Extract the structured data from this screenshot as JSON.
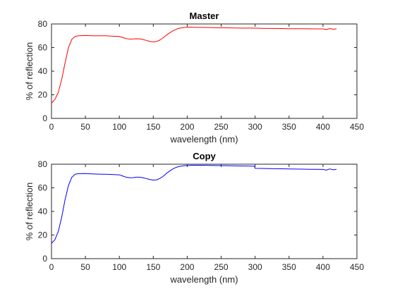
{
  "chart_data": [
    {
      "type": "line",
      "title": "Master",
      "xlabel": "wavelength (nm)",
      "ylabel": "% of reflection",
      "xlim": [
        0,
        450
      ],
      "ylim": [
        0,
        80
      ],
      "xticks": [
        "0",
        "50",
        "100",
        "150",
        "200",
        "250",
        "300",
        "350",
        "400",
        "450"
      ],
      "yticks": [
        "0",
        "20",
        "40",
        "60",
        "80"
      ],
      "grid": false,
      "color": "#ff0000",
      "series": [
        {
          "x": [
            0,
            5,
            10,
            15,
            20,
            25,
            30,
            35,
            40,
            50,
            60,
            70,
            80,
            90,
            100,
            105,
            110,
            115,
            120,
            125,
            130,
            135,
            140,
            145,
            150,
            155,
            160,
            165,
            170,
            175,
            180,
            185,
            190,
            195,
            200,
            205,
            210,
            220,
            230,
            240,
            250,
            260,
            270,
            280,
            290,
            300,
            310,
            320,
            330,
            340,
            350,
            360,
            370,
            380,
            390,
            400,
            405,
            410,
            415,
            420
          ],
          "y": [
            13,
            16,
            22,
            33,
            47,
            60,
            67,
            69.5,
            70,
            70.2,
            70,
            70,
            70,
            69.6,
            69.4,
            68.5,
            67.6,
            67.2,
            67.3,
            67.5,
            67.4,
            66.8,
            66,
            65.2,
            64.8,
            65.2,
            66.5,
            68.5,
            70.8,
            72.8,
            74.5,
            75.8,
            76.6,
            77,
            77.2,
            77.3,
            77.2,
            77.1,
            77,
            76.9,
            76.8,
            76.7,
            76.6,
            76.5,
            76.5,
            76.4,
            76.3,
            76.2,
            76.2,
            76.1,
            76,
            76,
            76,
            75.9,
            75.8,
            75.8,
            75.3,
            76.1,
            75.5,
            75.9
          ]
        }
      ]
    },
    {
      "type": "line",
      "title": "Copy",
      "xlabel": "wavelength (nm)",
      "ylabel": "% of reflection",
      "xlim": [
        0,
        450
      ],
      "ylim": [
        0,
        80
      ],
      "xticks": [
        "0",
        "50",
        "100",
        "150",
        "200",
        "250",
        "300",
        "350",
        "400",
        "450"
      ],
      "yticks": [
        "0",
        "20",
        "40",
        "60",
        "80"
      ],
      "grid": false,
      "color": "#0000ff",
      "series": [
        {
          "x": [
            0,
            5,
            10,
            15,
            20,
            25,
            30,
            35,
            40,
            50,
            60,
            70,
            80,
            90,
            100,
            105,
            110,
            115,
            120,
            125,
            130,
            135,
            140,
            145,
            150,
            155,
            160,
            165,
            170,
            175,
            180,
            185,
            190,
            195,
            200,
            205,
            210,
            220,
            230,
            240,
            250,
            260,
            270,
            280,
            290,
            299,
            300,
            310,
            320,
            330,
            340,
            350,
            360,
            370,
            380,
            390,
            400,
            405,
            410,
            415,
            420
          ],
          "y": [
            13,
            16,
            23,
            35,
            50,
            62,
            69,
            71.5,
            72,
            72.1,
            71.8,
            71.6,
            71.5,
            71.3,
            71,
            70,
            69,
            68.5,
            68.6,
            69,
            69,
            68.5,
            67.8,
            67,
            66.5,
            66.8,
            68,
            70,
            72.5,
            74.6,
            76.4,
            77.6,
            78.3,
            78.7,
            78.9,
            79,
            79.1,
            79.1,
            79,
            78.9,
            78.8,
            78.7,
            78.6,
            78.5,
            78.4,
            78.3,
            76.5,
            76.4,
            76.3,
            76.2,
            76.1,
            76,
            75.9,
            75.8,
            75.7,
            75.7,
            75.6,
            75,
            76,
            75.3,
            75.7
          ]
        }
      ]
    }
  ]
}
